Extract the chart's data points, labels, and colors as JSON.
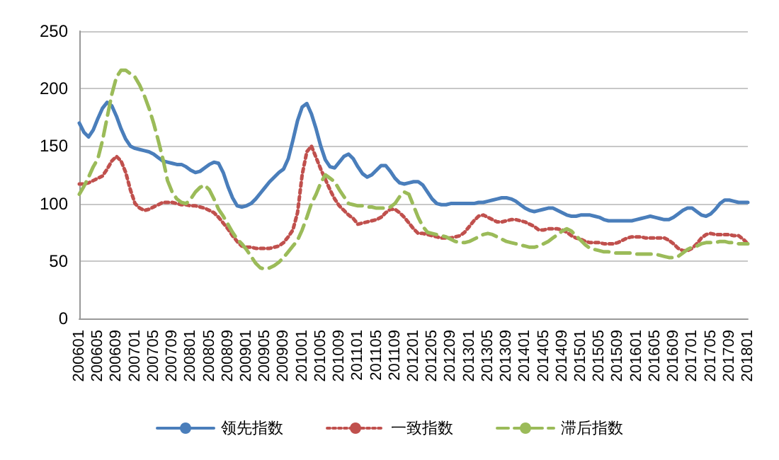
{
  "chart_data": {
    "type": "line",
    "categories": [
      "200601",
      null,
      null,
      null,
      "200605",
      null,
      null,
      null,
      "200609",
      null,
      null,
      null,
      "200701",
      null,
      null,
      null,
      "200705",
      null,
      null,
      null,
      "200709",
      null,
      null,
      null,
      "200801",
      null,
      null,
      null,
      "200805",
      null,
      null,
      null,
      "200809",
      null,
      null,
      null,
      "200901",
      null,
      null,
      null,
      "200905",
      null,
      null,
      null,
      "200909",
      null,
      null,
      null,
      "201001",
      null,
      null,
      null,
      "201005",
      null,
      null,
      null,
      "201009",
      null,
      null,
      null,
      "201101",
      null,
      null,
      null,
      "201105",
      null,
      null,
      null,
      "201109",
      null,
      null,
      null,
      "201201",
      null,
      null,
      null,
      "201205",
      null,
      null,
      null,
      "201209",
      null,
      null,
      null,
      "201301",
      null,
      null,
      null,
      "201305",
      null,
      null,
      null,
      "201309",
      null,
      null,
      null,
      "201401",
      null,
      null,
      null,
      "201405",
      null,
      null,
      null,
      "201409",
      null,
      null,
      null,
      "201501",
      null,
      null,
      null,
      "201505",
      null,
      null,
      null,
      "201509",
      null,
      null,
      null,
      "201601",
      null,
      null,
      null,
      "201605",
      null,
      null,
      null,
      "201609",
      null,
      null,
      null,
      "201701",
      null,
      null,
      null,
      "201705",
      null,
      null,
      null,
      "201709",
      null,
      null,
      null,
      "201801"
    ],
    "series": [
      {
        "name": "领先指数",
        "color": "#4a7ebb",
        "line_style": "solid",
        "values": [
          170,
          162,
          158,
          164,
          174,
          183,
          188,
          185,
          176,
          165,
          156,
          150,
          148,
          147,
          146,
          145,
          143,
          140,
          137,
          136,
          135,
          134,
          134,
          132,
          129,
          127,
          128,
          131,
          134,
          136,
          135,
          127,
          115,
          105,
          98,
          97,
          98,
          100,
          104,
          109,
          114,
          119,
          123,
          127,
          130,
          139,
          155,
          172,
          184,
          187,
          178,
          165,
          150,
          138,
          132,
          131,
          136,
          141,
          143,
          139,
          132,
          126,
          123,
          125,
          129,
          133,
          133,
          128,
          122,
          118,
          117,
          118,
          119,
          119,
          116,
          110,
          104,
          100,
          99,
          99,
          100,
          100,
          100,
          100,
          100,
          100,
          101,
          101,
          102,
          103,
          104,
          105,
          105,
          104,
          102,
          99,
          96,
          94,
          93,
          94,
          95,
          96,
          96,
          94,
          92,
          90,
          89,
          89,
          90,
          90,
          90,
          89,
          88,
          86,
          85,
          85,
          85,
          85,
          85,
          85,
          86,
          87,
          88,
          89,
          88,
          87,
          86,
          86,
          88,
          91,
          94,
          96,
          96,
          93,
          90,
          89,
          91,
          95,
          100,
          103,
          103,
          102,
          101,
          101,
          101
        ]
      },
      {
        "name": "一致指数",
        "color": "#c0504d",
        "line_style": "dotted",
        "values": [
          117,
          117,
          118,
          120,
          122,
          124,
          130,
          137,
          141,
          137,
          127,
          112,
          100,
          96,
          94,
          95,
          97,
          99,
          101,
          101,
          101,
          100,
          99,
          99,
          98,
          98,
          97,
          96,
          94,
          92,
          88,
          83,
          78,
          72,
          67,
          63,
          62,
          62,
          61,
          61,
          61,
          61,
          62,
          63,
          66,
          71,
          77,
          92,
          125,
          145,
          150,
          140,
          130,
          121,
          112,
          104,
          98,
          94,
          90,
          87,
          82,
          83,
          84,
          85,
          86,
          88,
          92,
          95,
          95,
          92,
          88,
          83,
          78,
          74,
          74,
          73,
          72,
          71,
          70,
          70,
          70,
          71,
          72,
          75,
          80,
          85,
          89,
          90,
          88,
          86,
          84,
          84,
          85,
          86,
          86,
          85,
          84,
          82,
          80,
          77,
          77,
          78,
          78,
          78,
          77,
          75,
          72,
          70,
          69,
          67,
          66,
          66,
          66,
          65,
          65,
          65,
          66,
          68,
          70,
          71,
          71,
          71,
          70,
          70,
          70,
          70,
          70,
          68,
          65,
          61,
          59,
          59,
          61,
          65,
          70,
          73,
          74,
          73,
          73,
          73,
          73,
          72,
          72,
          69,
          65
        ]
      },
      {
        "name": "滞后指数",
        "color": "#9bbb59",
        "line_style": "dashed",
        "values": [
          108,
          115,
          123,
          132,
          139,
          155,
          175,
          195,
          210,
          216,
          216,
          213,
          210,
          203,
          194,
          183,
          170,
          155,
          139,
          120,
          110,
          104,
          101,
          100,
          104,
          110,
          114,
          116,
          112,
          104,
          95,
          89,
          82,
          75,
          69,
          65,
          60,
          54,
          48,
          44,
          43,
          44,
          46,
          49,
          53,
          58,
          63,
          68,
          77,
          88,
          100,
          108,
          118,
          125,
          122,
          119,
          112,
          106,
          100,
          99,
          98,
          98,
          97,
          97,
          96,
          96,
          96,
          97,
          100,
          106,
          110,
          108,
          98,
          88,
          80,
          75,
          74,
          73,
          72,
          71,
          69,
          67,
          66,
          66,
          67,
          69,
          71,
          73,
          74,
          73,
          71,
          69,
          67,
          66,
          65,
          64,
          63,
          62,
          62,
          63,
          65,
          67,
          70,
          73,
          76,
          78,
          76,
          72,
          68,
          64,
          61,
          60,
          59,
          58,
          58,
          57,
          57,
          57,
          57,
          57,
          56,
          56,
          56,
          56,
          56,
          55,
          54,
          53,
          53,
          54,
          57,
          60,
          62,
          63,
          65,
          66,
          66,
          66,
          67,
          67,
          66,
          66,
          65,
          65,
          65
        ]
      }
    ],
    "ylim": [
      0,
      250
    ],
    "yticks": [
      0,
      50,
      100,
      150,
      200,
      250
    ],
    "grid": "y",
    "legend": "bottom",
    "marker": "none"
  }
}
